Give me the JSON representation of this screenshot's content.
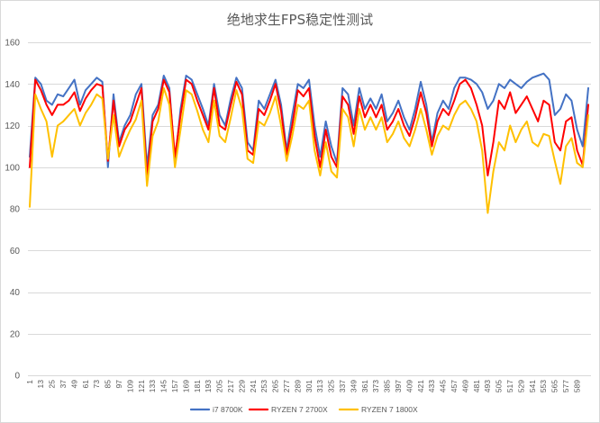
{
  "chart_data": {
    "type": "line",
    "title": "绝地求生FPS稳定性测试",
    "grid": true,
    "legend": "bottom",
    "ylim": [
      0,
      160
    ],
    "yticks": [
      0,
      20,
      40,
      60,
      80,
      100,
      120,
      140,
      160
    ],
    "xticks": [
      1,
      13,
      25,
      37,
      49,
      61,
      73,
      85,
      97,
      109,
      121,
      133,
      145,
      157,
      169,
      181,
      193,
      205,
      217,
      229,
      241,
      253,
      265,
      277,
      289,
      301,
      313,
      325,
      337,
      349,
      361,
      373,
      385,
      397,
      409,
      421,
      433,
      445,
      457,
      469,
      481,
      493,
      505,
      517,
      529,
      541,
      553,
      565,
      577,
      589
    ],
    "x": [
      1,
      7,
      13,
      19,
      25,
      31,
      37,
      43,
      49,
      55,
      61,
      67,
      73,
      79,
      85,
      91,
      97,
      103,
      109,
      115,
      121,
      127,
      133,
      139,
      145,
      151,
      157,
      163,
      169,
      175,
      181,
      187,
      193,
      199,
      205,
      211,
      217,
      223,
      229,
      235,
      241,
      247,
      253,
      259,
      265,
      271,
      277,
      283,
      289,
      295,
      301,
      307,
      313,
      319,
      325,
      331,
      337,
      343,
      349,
      355,
      361,
      367,
      373,
      379,
      385,
      391,
      397,
      403,
      409,
      415,
      421,
      427,
      433,
      439,
      445,
      451,
      457,
      463,
      469,
      475,
      481,
      487,
      493,
      499,
      505,
      511,
      517,
      523,
      529,
      535,
      541,
      547,
      553,
      559,
      565,
      571,
      577,
      583,
      589,
      595,
      601
    ],
    "series": [
      {
        "name": "i7 8700K",
        "color": "#4472C4",
        "values": [
          105,
          143,
          140,
          132,
          130,
          135,
          134,
          138,
          142,
          130,
          137,
          140,
          143,
          141,
          100,
          135,
          112,
          120,
          125,
          135,
          140,
          100,
          125,
          130,
          144,
          138,
          102,
          128,
          144,
          142,
          135,
          128,
          120,
          140,
          125,
          120,
          133,
          143,
          138,
          112,
          108,
          132,
          128,
          135,
          142,
          130,
          108,
          125,
          140,
          138,
          142,
          120,
          105,
          122,
          110,
          102,
          138,
          135,
          120,
          138,
          128,
          133,
          128,
          135,
          122,
          126,
          132,
          124,
          118,
          128,
          141,
          130,
          112,
          126,
          132,
          128,
          138,
          143,
          143,
          142,
          140,
          136,
          128,
          132,
          140,
          138,
          142,
          140,
          138,
          141,
          143,
          144,
          145,
          142,
          125,
          128,
          135,
          132,
          118,
          110,
          138
        ]
      },
      {
        "name": "RYZEN 7 2700X",
        "color": "#FF0000",
        "values": [
          100,
          142,
          137,
          130,
          125,
          130,
          130,
          132,
          136,
          127,
          133,
          137,
          140,
          139,
          103,
          132,
          110,
          118,
          122,
          130,
          138,
          95,
          122,
          128,
          142,
          136,
          105,
          125,
          142,
          140,
          132,
          125,
          118,
          138,
          120,
          118,
          130,
          141,
          135,
          108,
          106,
          128,
          125,
          132,
          140,
          127,
          106,
          120,
          137,
          134,
          138,
          115,
          100,
          118,
          105,
          100,
          134,
          130,
          116,
          134,
          124,
          130,
          124,
          130,
          118,
          122,
          128,
          120,
          115,
          124,
          136,
          126,
          110,
          122,
          128,
          125,
          132,
          140,
          142,
          138,
          130,
          120,
          96,
          112,
          132,
          128,
          136,
          126,
          130,
          134,
          128,
          122,
          132,
          130,
          112,
          108,
          122,
          124,
          108,
          101,
          130
        ]
      },
      {
        "name": "RYZEN 7 1800X",
        "color": "#FFC000",
        "values": [
          81,
          135,
          128,
          122,
          105,
          120,
          122,
          125,
          128,
          120,
          126,
          130,
          135,
          133,
          104,
          125,
          105,
          112,
          118,
          123,
          132,
          91,
          115,
          122,
          138,
          130,
          100,
          118,
          137,
          135,
          127,
          118,
          112,
          132,
          115,
          112,
          124,
          137,
          128,
          104,
          102,
          122,
          120,
          126,
          134,
          120,
          103,
          115,
          130,
          128,
          132,
          108,
          96,
          112,
          98,
          95,
          128,
          124,
          110,
          128,
          118,
          124,
          118,
          124,
          112,
          116,
          122,
          114,
          110,
          118,
          128,
          118,
          106,
          115,
          120,
          118,
          125,
          130,
          132,
          128,
          122,
          108,
          78,
          98,
          112,
          108,
          120,
          112,
          118,
          122,
          112,
          110,
          116,
          115,
          103,
          92,
          110,
          114,
          102,
          100,
          125
        ]
      }
    ]
  }
}
